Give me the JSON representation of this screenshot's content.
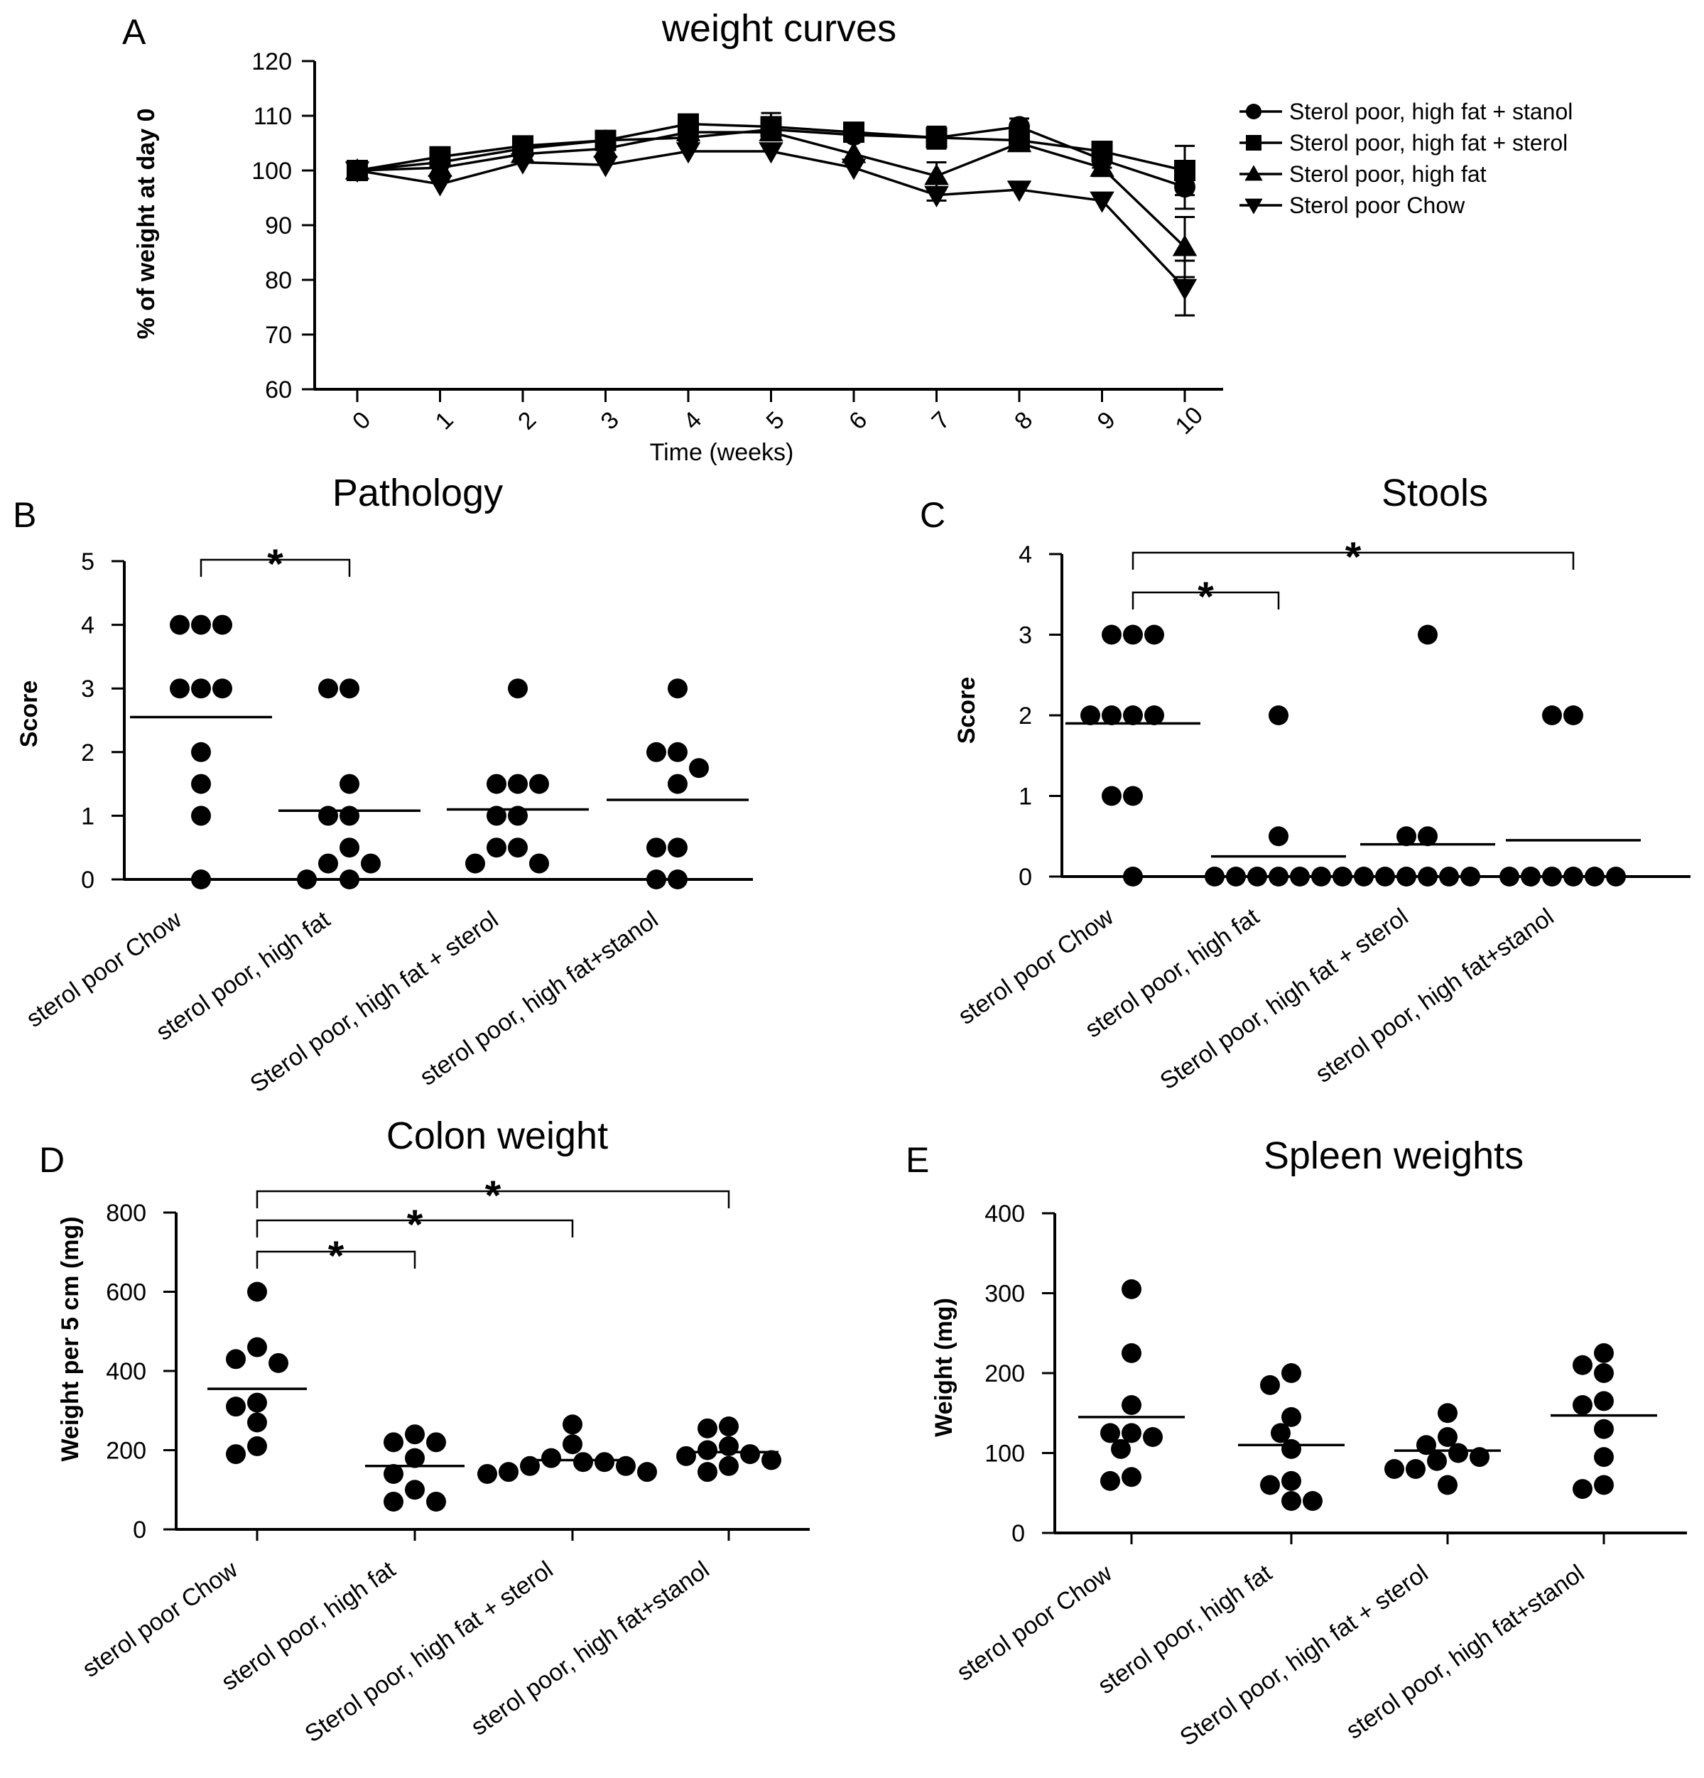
{
  "chart_data": [
    {
      "panel": "A",
      "type": "line",
      "title": "weight curves",
      "xlabel": "Time (weeks)",
      "ylabel": "% of weight at day 0",
      "x": [
        0,
        1,
        2,
        3,
        4,
        5,
        6,
        7,
        8,
        9,
        10
      ],
      "xticks": [
        "0",
        "1",
        "2",
        "3",
        "4",
        "5",
        "6",
        "7",
        "8",
        "9",
        "10"
      ],
      "ylim": [
        60,
        120
      ],
      "yticks": [
        "60",
        "70",
        "80",
        "90",
        "100",
        "110",
        "120"
      ],
      "series": [
        {
          "name": "Sterol poor, high fat + stanol",
          "marker": "circle",
          "values": [
            100,
            101.5,
            104,
            105.5,
            106,
            107.5,
            106.5,
            106,
            108,
            102,
            97
          ],
          "errors": [
            0,
            0,
            0,
            0,
            0,
            1.5,
            0,
            0,
            1.5,
            1.5,
            4
          ]
        },
        {
          "name": "Sterol poor, high fat  + sterol",
          "marker": "square",
          "values": [
            100,
            102.5,
            104.5,
            105.5,
            108.5,
            108,
            107,
            106,
            105.5,
            103.5,
            100
          ],
          "errors": [
            0,
            0,
            0,
            0,
            0,
            2.5,
            0,
            2,
            0,
            1.5,
            4.5
          ]
        },
        {
          "name": "Sterol poor, high fat",
          "marker": "triangle-up",
          "values": [
            100,
            100.5,
            103,
            104,
            107,
            107,
            103,
            99,
            105,
            100.5,
            86
          ],
          "errors": [
            0,
            0,
            0,
            0,
            0,
            0,
            0,
            2.5,
            0,
            1.5,
            5.5
          ]
        },
        {
          "name": "Sterol poor Chow",
          "marker": "triangle-down",
          "values": [
            100,
            97.5,
            101.5,
            101,
            103.5,
            103.5,
            100.5,
            95.5,
            96.5,
            94.5,
            78.5
          ],
          "errors": [
            0,
            0,
            0,
            0,
            0,
            0,
            0,
            1,
            0,
            0,
            5
          ]
        }
      ]
    },
    {
      "panel": "B",
      "type": "scatter",
      "title": "Pathology",
      "ylabel": "Score",
      "ylim": [
        0,
        5
      ],
      "yticks": [
        "0",
        "1",
        "2",
        "3",
        "4",
        "5"
      ],
      "categories": [
        "sterol poor Chow",
        "sterol poor, high fat",
        "Sterol poor, high fat + sterol",
        "sterol poor, high fat+stanol"
      ],
      "groups": [
        [
          4,
          4,
          4,
          3,
          3,
          3,
          2,
          1.5,
          1,
          0
        ],
        [
          3,
          3,
          1.5,
          1,
          1,
          0.5,
          0.25,
          0.25,
          0,
          0
        ],
        [
          3,
          1.5,
          1.5,
          1.5,
          1,
          1,
          0.5,
          0.5,
          0.25,
          0.25
        ],
        [
          3,
          2,
          2,
          1.75,
          1.5,
          0.5,
          0.5,
          0,
          0
        ]
      ],
      "means": [
        2.55,
        1.08,
        1.1,
        1.25
      ],
      "significance": [
        {
          "from": 0,
          "to": 1,
          "label": "*"
        }
      ]
    },
    {
      "panel": "C",
      "type": "scatter",
      "title": "Stools",
      "ylabel": "Score",
      "ylim": [
        0,
        4
      ],
      "yticks": [
        "0",
        "1",
        "2",
        "3",
        "4"
      ],
      "categories": [
        "sterol poor Chow",
        "sterol poor, high fat",
        "Sterol poor, high fat + sterol",
        "sterol poor, high fat+stanol"
      ],
      "groups": [
        [
          3,
          3,
          3,
          2,
          2,
          2,
          2,
          1,
          1,
          0
        ],
        [
          2,
          0.5,
          0,
          0,
          0,
          0,
          0,
          0,
          0
        ],
        [
          3,
          0.5,
          0.5,
          0,
          0,
          0,
          0,
          0,
          0
        ],
        [
          2,
          2,
          0,
          0,
          0,
          0,
          0,
          0
        ]
      ],
      "means": [
        1.9,
        0.25,
        0.4,
        0.45
      ],
      "significance": [
        {
          "from": 0,
          "to": 1,
          "label": "*"
        },
        {
          "from": 0,
          "to": 3,
          "label": "*"
        }
      ]
    },
    {
      "panel": "D",
      "type": "scatter",
      "title": "Colon weight",
      "ylabel": "Weight per 5 cm (mg)",
      "ylim": [
        0,
        800
      ],
      "yticks": [
        "0",
        "200",
        "400",
        "600",
        "800"
      ],
      "categories": [
        "sterol poor Chow",
        "sterol poor, high fat",
        "Sterol poor, high fat + sterol",
        "sterol poor, high fat+stanol"
      ],
      "groups": [
        [
          600,
          460,
          430,
          420,
          320,
          310,
          270,
          210,
          190
        ],
        [
          240,
          220,
          220,
          180,
          140,
          100,
          70,
          70
        ],
        [
          265,
          215,
          180,
          170,
          170,
          160,
          160,
          145,
          145,
          140
        ],
        [
          260,
          255,
          210,
          200,
          190,
          185,
          175,
          160,
          145
        ]
      ],
      "means": [
        355,
        160,
        175,
        195
      ],
      "significance": [
        {
          "from": 0,
          "to": 1,
          "label": "*"
        },
        {
          "from": 0,
          "to": 2,
          "label": "*"
        },
        {
          "from": 0,
          "to": 3,
          "label": "*"
        }
      ]
    },
    {
      "panel": "E",
      "type": "scatter",
      "title": "Spleen weights",
      "ylabel": "Weight (mg)",
      "ylim": [
        0,
        400
      ],
      "yticks": [
        "0",
        "100",
        "200",
        "300",
        "400"
      ],
      "categories": [
        "sterol poor Chow",
        "sterol poor, high fat",
        "Sterol poor, high fat + sterol",
        "sterol poor, high fat+stanol"
      ],
      "groups": [
        [
          305,
          225,
          160,
          125,
          125,
          120,
          105,
          70,
          65
        ],
        [
          200,
          185,
          145,
          125,
          105,
          65,
          60,
          40,
          40
        ],
        [
          150,
          120,
          110,
          100,
          95,
          90,
          80,
          80,
          60
        ],
        [
          225,
          210,
          200,
          165,
          160,
          130,
          95,
          60,
          55
        ]
      ],
      "means": [
        145,
        110,
        103,
        147
      ],
      "significance": []
    }
  ]
}
